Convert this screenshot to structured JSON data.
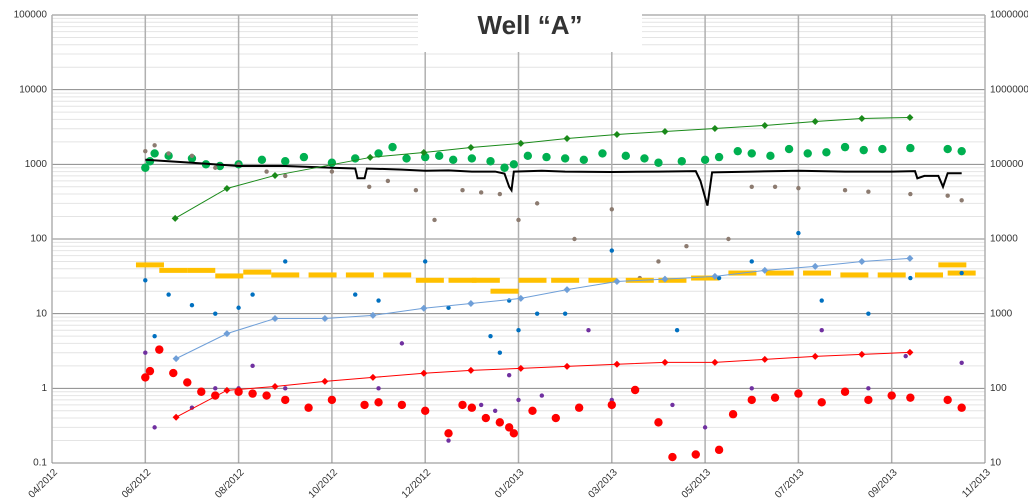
{
  "chart_data": {
    "type": "scatter",
    "title": "Well “A”",
    "xlim": [
      0,
      20
    ],
    "xticks": [
      {
        "value": 0,
        "label": "04/2012"
      },
      {
        "value": 2,
        "label": "06/2012"
      },
      {
        "value": 4,
        "label": "08/2012"
      },
      {
        "value": 6,
        "label": "10/2012"
      },
      {
        "value": 8,
        "label": "12/2012"
      },
      {
        "value": 10,
        "label": "01/2013"
      },
      {
        "value": 12,
        "label": "03/2013"
      },
      {
        "value": 14,
        "label": "05/2013"
      },
      {
        "value": 16,
        "label": "07/2013"
      },
      {
        "value": 18,
        "label": "09/2013"
      },
      {
        "value": 20,
        "label": "11/2013"
      }
    ],
    "ylim": [
      0.1,
      100000
    ],
    "yticks": [
      0.1,
      1,
      10,
      100,
      1000,
      10000,
      100000
    ],
    "log_scale": true,
    "grid": true,
    "y2lim": [
      10,
      10000000
    ],
    "y2ticks": [
      10,
      100,
      1000,
      10000,
      100000,
      1000000,
      10000000
    ],
    "series": [
      {
        "color": "#00b050",
        "marker": "large-dot",
        "line": false,
        "x": [
          2.0,
          2.1,
          2.2,
          2.5,
          3.0,
          3.3,
          3.6,
          4.0,
          4.5,
          5.0,
          5.4,
          6.0,
          6.5,
          7.0,
          7.3,
          7.6,
          8.0,
          8.3,
          8.6,
          9.0,
          9.4,
          9.7,
          9.9,
          10.2,
          10.6,
          11.0,
          11.4,
          11.8,
          12.3,
          12.7,
          13.0,
          13.5,
          14.0,
          14.3,
          14.7,
          15.0,
          15.4,
          15.8,
          16.2,
          16.6,
          17.0,
          17.4,
          17.8,
          18.4,
          19.2,
          19.5
        ],
        "values": [
          900,
          1100,
          1400,
          1300,
          1200,
          1000,
          950,
          1000,
          1150,
          1100,
          1250,
          1050,
          1200,
          1400,
          1700,
          1200,
          1250,
          1300,
          1150,
          1200,
          1100,
          900,
          1000,
          1300,
          1250,
          1200,
          1150,
          1400,
          1300,
          1200,
          1050,
          1100,
          1150,
          1250,
          1500,
          1400,
          1300,
          1600,
          1400,
          1450,
          1700,
          1550,
          1600,
          1650,
          1600,
          1500
        ]
      },
      {
        "color": "#8c7b70",
        "marker": "dot",
        "line": false,
        "x": [
          2.0,
          2.2,
          2.5,
          3.0,
          3.5,
          4.0,
          4.6,
          5.0,
          6.0,
          6.8,
          7.2,
          7.8,
          8.2,
          8.8,
          9.2,
          9.6,
          10.0,
          10.4,
          11.2,
          12.0,
          12.6,
          13.0,
          13.6,
          14.5,
          15.0,
          15.5,
          16.0,
          17.0,
          17.5,
          18.4,
          19.2,
          19.5
        ],
        "values": [
          1500,
          1800,
          1400,
          1300,
          900,
          1000,
          800,
          700,
          800,
          500,
          600,
          450,
          180,
          450,
          420,
          400,
          180,
          300,
          100,
          250,
          30,
          50,
          80,
          100,
          500,
          500,
          480,
          450,
          430,
          400,
          380,
          330
        ]
      },
      {
        "color": "#000000",
        "marker": "none",
        "line": true,
        "x": [
          2.0,
          2.5,
          3.0,
          3.5,
          4.0,
          5.0,
          6.0,
          6.5,
          6.55,
          6.7,
          6.75,
          7.5,
          8.0,
          8.5,
          9.0,
          9.5,
          9.7,
          9.8,
          9.85,
          9.9,
          10.5,
          11.0,
          12.0,
          13.0,
          13.8,
          13.9,
          14.05,
          14.15,
          15.0,
          16.0,
          17.0,
          18.0,
          18.5,
          18.55,
          18.7,
          19.0,
          19.1,
          19.2,
          19.5
        ],
        "values": [
          1150,
          1100,
          1050,
          1000,
          950,
          950,
          900,
          880,
          650,
          650,
          880,
          850,
          820,
          830,
          800,
          800,
          750,
          500,
          450,
          800,
          820,
          800,
          790,
          800,
          810,
          600,
          280,
          780,
          800,
          820,
          800,
          800,
          810,
          650,
          700,
          700,
          500,
          760,
          760
        ]
      },
      {
        "color": "#1a8a1a",
        "marker": "diamond",
        "line": true,
        "x": [
          2.64,
          3.75,
          4.78,
          6.82,
          7.97,
          8.98,
          10.05,
          11.04,
          12.11,
          13.14,
          14.21,
          15.28,
          16.36,
          17.36,
          18.39
        ],
        "values": [
          189,
          475,
          710,
          1237,
          1443,
          1683,
          1905,
          2222,
          2514,
          2757,
          3024,
          3317,
          3750,
          4113,
          4245
        ]
      },
      {
        "color": "#ffc000",
        "marker": "dash",
        "line": false,
        "x": [
          2.1,
          2.6,
          3.2,
          3.8,
          4.4,
          5.0,
          5.8,
          6.6,
          7.4,
          8.1,
          8.8,
          9.3,
          9.7,
          10.3,
          11.0,
          11.8,
          12.6,
          13.3,
          14.0,
          14.8,
          15.6,
          16.4,
          17.2,
          18.0,
          18.8,
          19.3,
          19.5
        ],
        "values": [
          45,
          38,
          38,
          32,
          36,
          33,
          33,
          33,
          33,
          28,
          28,
          28,
          20,
          28,
          28,
          28,
          28,
          28,
          30,
          35,
          35,
          35,
          33,
          33,
          33,
          45,
          35
        ]
      },
      {
        "color": "#0070c0",
        "marker": "dot",
        "line": false,
        "x": [
          2.0,
          2.2,
          2.5,
          3.0,
          3.5,
          4.0,
          4.3,
          5.0,
          6.5,
          7.0,
          8.0,
          8.5,
          9.4,
          9.6,
          9.8,
          10.0,
          10.4,
          11.0,
          12.0,
          13.4,
          14.3,
          15.0,
          16.0,
          16.5,
          17.5,
          18.4,
          19.5
        ],
        "values": [
          28,
          5,
          18,
          13,
          10,
          12,
          18,
          50,
          18,
          15,
          50,
          12,
          5,
          3,
          15,
          6,
          10,
          10,
          70,
          6,
          30,
          50,
          120,
          15,
          10,
          30,
          35
        ]
      },
      {
        "color": "#6f9fd8",
        "marker": "diamond",
        "line": true,
        "x": [
          2.66,
          3.75,
          4.78,
          5.85,
          6.88,
          7.97,
          8.98,
          10.05,
          11.04,
          12.11,
          13.14,
          14.21,
          15.28,
          16.36,
          17.36,
          18.39
        ],
        "values": [
          2.5,
          5.4,
          8.6,
          8.6,
          9.5,
          11.8,
          13.7,
          16,
          21,
          27,
          29,
          31.6,
          38,
          43,
          50,
          55
        ]
      },
      {
        "color": "#7030a0",
        "marker": "dot",
        "line": false,
        "x": [
          2.0,
          2.2,
          3.0,
          3.5,
          4.0,
          4.3,
          5.0,
          7.0,
          7.5,
          8.5,
          9.2,
          9.5,
          9.8,
          10.0,
          10.5,
          11.5,
          12.0,
          13.3,
          14.0,
          15.0,
          16.5,
          17.5,
          18.3,
          19.5
        ],
        "values": [
          3,
          0.3,
          0.55,
          1,
          1,
          2,
          1,
          1,
          4,
          0.2,
          0.6,
          0.5,
          1.5,
          0.7,
          0.8,
          6,
          0.7,
          0.6,
          0.3,
          1,
          6,
          1,
          2.7,
          2.2
        ]
      },
      {
        "color": "#ff0000",
        "marker": "large-dot",
        "line": false,
        "x": [
          2.0,
          2.1,
          2.3,
          2.6,
          2.9,
          3.2,
          3.5,
          4.0,
          4.3,
          4.6,
          5.0,
          5.5,
          6.0,
          6.7,
          7.0,
          7.5,
          8.0,
          8.5,
          8.8,
          9.0,
          9.3,
          9.6,
          9.8,
          9.9,
          10.3,
          10.8,
          11.3,
          12.0,
          12.5,
          13.0,
          13.3,
          13.8,
          14.3,
          14.6,
          15.0,
          15.5,
          16.0,
          16.5,
          17.0,
          17.5,
          18.0,
          18.4,
          19.2,
          19.5
        ],
        "values": [
          1.4,
          1.7,
          3.3,
          1.6,
          1.2,
          0.9,
          0.8,
          0.9,
          0.85,
          0.8,
          0.7,
          0.55,
          0.7,
          0.6,
          0.65,
          0.6,
          0.5,
          0.25,
          0.6,
          0.55,
          0.4,
          0.35,
          0.3,
          0.25,
          0.5,
          0.4,
          0.55,
          0.6,
          0.95,
          0.35,
          0.12,
          0.13,
          0.15,
          0.45,
          0.7,
          0.75,
          0.85,
          0.65,
          0.9,
          0.7,
          0.8,
          0.75,
          0.7,
          0.55
        ]
      },
      {
        "color": "#ff0000",
        "marker": "diamond",
        "line": true,
        "x": [
          2.66,
          3.75,
          4.78,
          5.85,
          6.88,
          7.97,
          8.98,
          10.05,
          11.04,
          12.11,
          13.14,
          14.21,
          15.28,
          16.36,
          17.36,
          18.39
        ],
        "values": [
          0.41,
          0.94,
          1.06,
          1.24,
          1.4,
          1.59,
          1.74,
          1.85,
          1.97,
          2.1,
          2.23,
          2.23,
          2.44,
          2.68,
          2.85,
          3.03
        ]
      }
    ]
  }
}
